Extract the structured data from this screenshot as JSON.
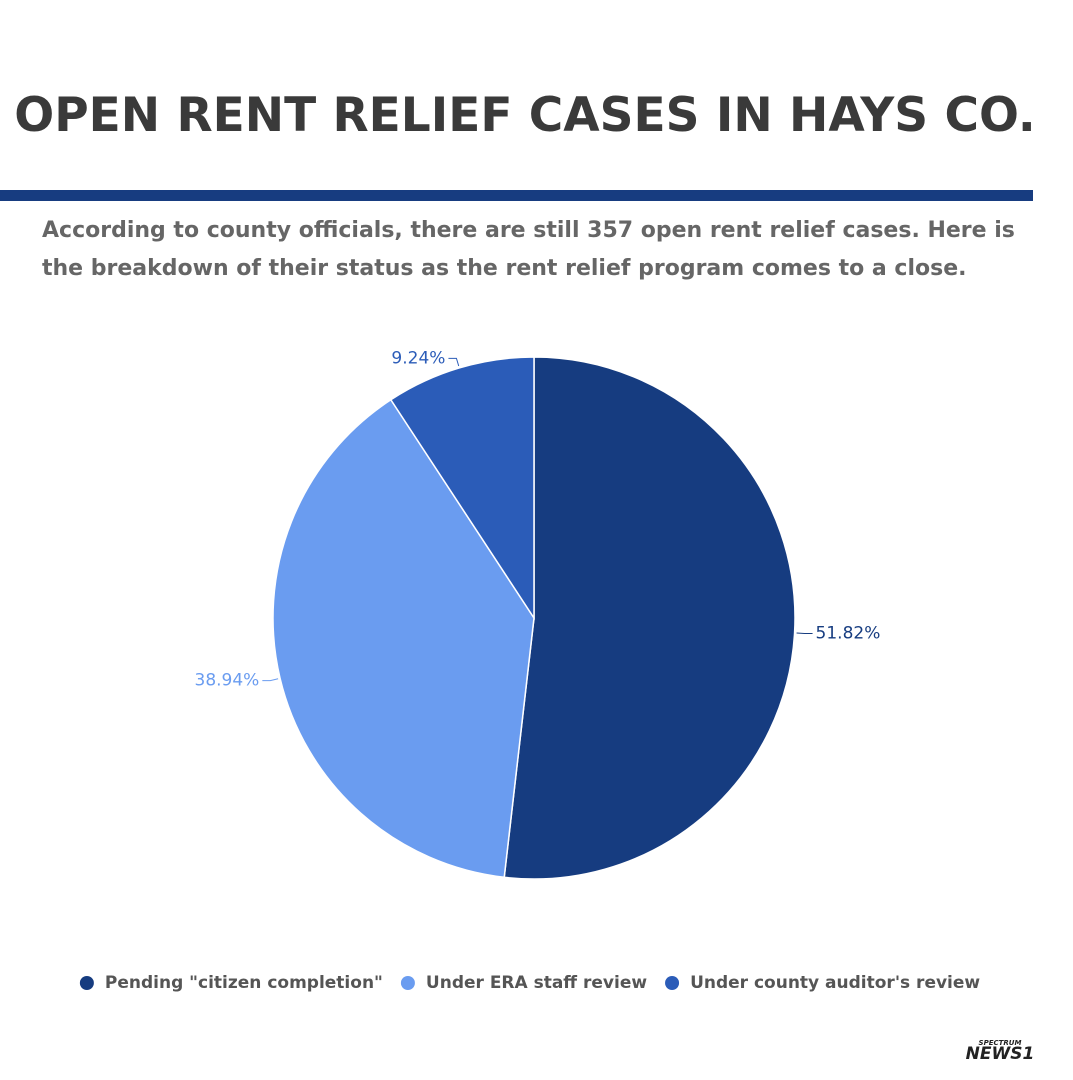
{
  "chart_data": {
    "type": "pie",
    "title": "OPEN RENT RELIEF CASES IN HAYS CO.",
    "subtitle": "According to county officials, there are still 357 open rent relief cases. Here is the breakdown of their status as the rent relief program comes to a close.",
    "categories": [
      "Pending \"citizen completion\"",
      "Under ERA staff review",
      "Under county auditor's review"
    ],
    "values": [
      51.82,
      38.94,
      9.24
    ],
    "value_labels": [
      "51.82%",
      "38.94%",
      "9.24%"
    ],
    "colors": [
      "#163c80",
      "#6a9cf0",
      "#2b5cb8"
    ],
    "legend": "bottom",
    "logo_top": "SPECTRUM",
    "logo_bottom": "NEWS1"
  }
}
